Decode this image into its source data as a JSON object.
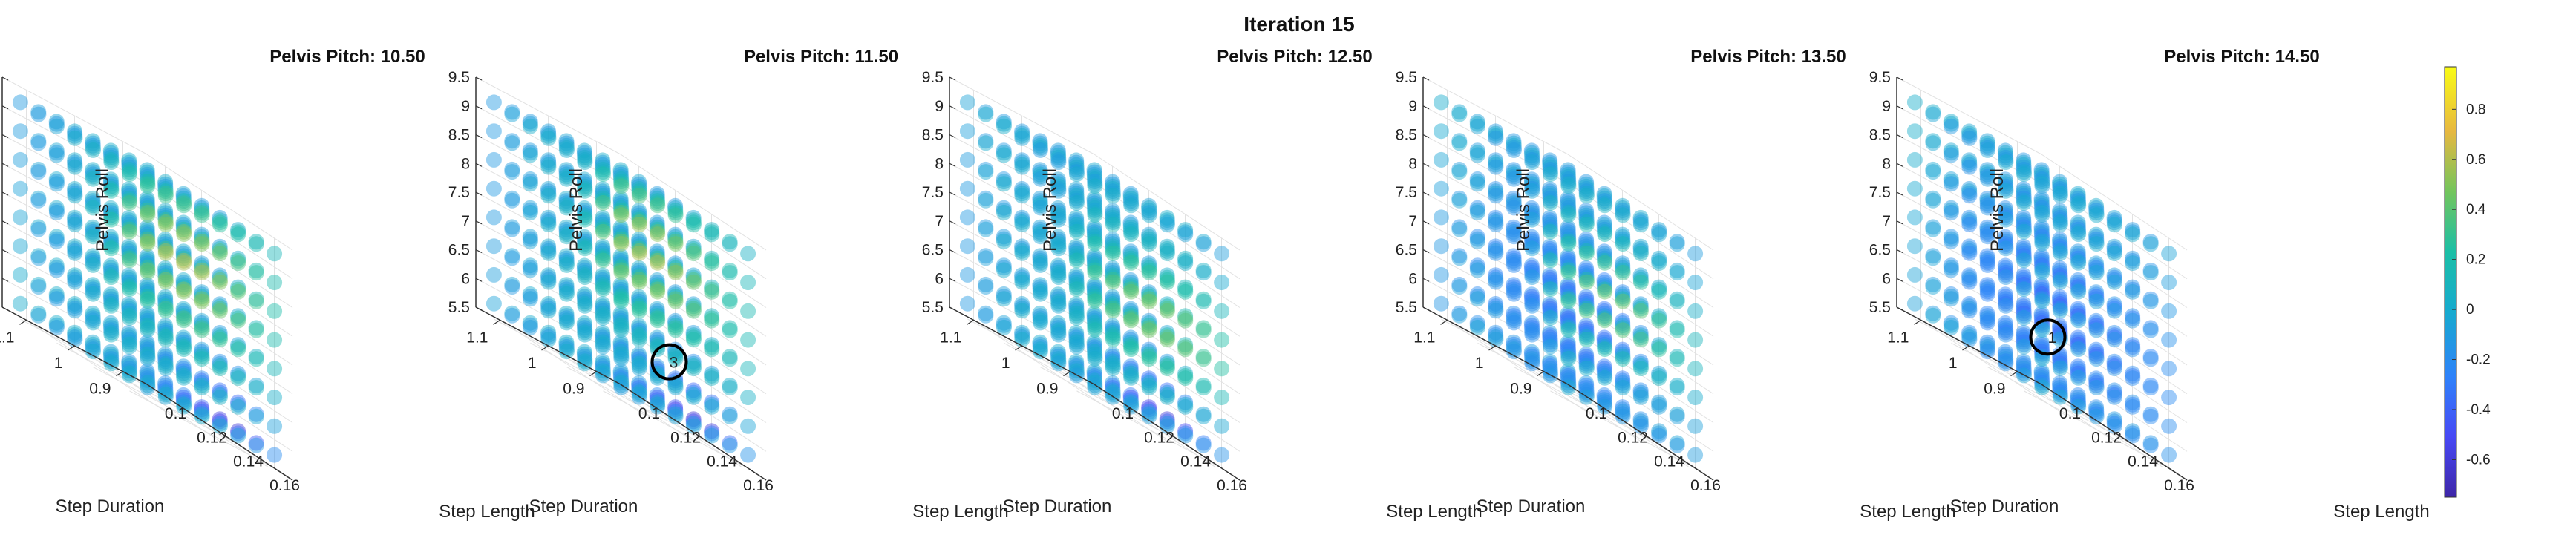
{
  "chart_data": {
    "type": "scatter",
    "title": "Iteration 15",
    "subplots": [
      {
        "title": "Pelvis Pitch: 10.50",
        "pelvis_pitch": 10.5,
        "hot_spot": "upper-right",
        "cold_spot": "lower-front",
        "marker": null
      },
      {
        "title": "Pelvis Pitch: 11.50",
        "pelvis_pitch": 11.5,
        "hot_spot": "upper-right",
        "cold_spot": "lower-front",
        "marker": {
          "label": "3",
          "step_length": 0.13,
          "step_duration": 0.9,
          "pelvis_roll": 6.5
        }
      },
      {
        "title": "Pelvis Pitch: 12.50",
        "pelvis_pitch": 12.5,
        "hot_spot": "right",
        "cold_spot": "lower-front",
        "marker": null
      },
      {
        "title": "Pelvis Pitch: 13.50",
        "pelvis_pitch": 13.5,
        "hot_spot": "right",
        "cold_spot": "center",
        "marker": null
      },
      {
        "title": "Pelvis Pitch: 14.50",
        "pelvis_pitch": 14.5,
        "hot_spot": "none",
        "cold_spot": "center",
        "marker": {
          "label": "1",
          "step_length": 0.12,
          "step_duration": 0.95,
          "pelvis_roll": 6.5
        }
      }
    ],
    "axes": {
      "x": {
        "label": "Step Length",
        "ticks": [
          "0.1",
          "0.12",
          "0.14",
          "0.16"
        ],
        "values": [
          0.1,
          0.12,
          0.14,
          0.16
        ],
        "range": [
          0.09,
          0.17
        ]
      },
      "y": {
        "label": "Step Duration",
        "ticks": [
          "0.9",
          "1",
          "1.1"
        ],
        "values": [
          0.9,
          1.0,
          1.1
        ],
        "range": [
          0.85,
          1.15
        ]
      },
      "z": {
        "label": "Pelvis Roll",
        "ticks": [
          "5.5",
          "6",
          "6.5",
          "7",
          "7.5",
          "8",
          "8.5",
          "9",
          "9.5"
        ],
        "values": [
          5.5,
          6,
          6.5,
          7,
          7.5,
          8,
          8.5,
          9,
          9.5
        ],
        "range": [
          5.5,
          9.5
        ]
      }
    },
    "grid": true,
    "colorbar": {
      "colormap": "parula",
      "range": [
        -0.75,
        0.97
      ],
      "ticks": [
        "0.8",
        "0.6",
        "0.4",
        "0.2",
        "0",
        "-0.2",
        "-0.4",
        "-0.6"
      ],
      "values": [
        0.8,
        0.6,
        0.4,
        0.2,
        0,
        -0.2,
        -0.4,
        -0.6
      ],
      "placement": "right"
    }
  }
}
